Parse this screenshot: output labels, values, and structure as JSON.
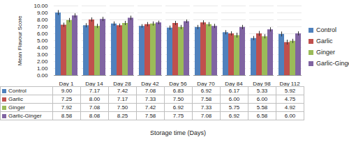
{
  "chart_data": {
    "type": "bar",
    "y_label": "Mean Flavour Score",
    "x_label": "Storage time (Days)",
    "categories": [
      "Day 1",
      "Day 14",
      "Day 28",
      "Day 42",
      "Day 56",
      "Day 70",
      "Day 84",
      "Day 98",
      "Day 112"
    ],
    "series": [
      {
        "name": "Control",
        "color": "#4f81bd",
        "values": [
          9.0,
          7.17,
          7.42,
          7.08,
          6.83,
          6.92,
          6.17,
          5.33,
          5.92
        ],
        "value_labels": [
          "9.00",
          "7.17",
          "7.42",
          "7.08",
          "6.83",
          "6.92",
          "6.17",
          "5.33",
          "5.92"
        ],
        "errors": [
          0.35,
          0.3,
          0.3,
          0.25,
          0.3,
          0.3,
          0.3,
          0.3,
          0.35
        ]
      },
      {
        "name": "Garlic",
        "color": "#c0504d",
        "values": [
          7.25,
          8.0,
          7.17,
          7.33,
          7.5,
          7.58,
          6.0,
          6.0,
          4.75
        ],
        "value_labels": [
          "7.25",
          "8.00",
          "7.17",
          "7.33",
          "7.50",
          "7.58",
          "6.00",
          "6.00",
          "4.75"
        ],
        "errors": [
          0.3,
          0.3,
          0.25,
          0.3,
          0.3,
          0.3,
          0.3,
          0.35,
          0.35
        ]
      },
      {
        "name": "Ginger",
        "color": "#9bbb59",
        "values": [
          7.92,
          7.08,
          7.5,
          7.42,
          6.92,
          7.33,
          5.75,
          5.58,
          4.92
        ],
        "value_labels": [
          "7.92",
          "7.08",
          "7.50",
          "7.42",
          "6.92",
          "7.33",
          "5.75",
          "5.58",
          "4.92"
        ],
        "errors": [
          0.3,
          0.3,
          0.3,
          0.3,
          0.3,
          0.3,
          0.35,
          0.3,
          0.3
        ]
      },
      {
        "name": "Garlic-Ginger",
        "color": "#8064a2",
        "values": [
          8.58,
          8.08,
          8.25,
          7.58,
          7.75,
          7.08,
          6.92,
          6.58,
          6.0
        ],
        "value_labels": [
          "8.58",
          "8.08",
          "8.25",
          "7.58",
          "7.75",
          "7.08",
          "6.92",
          "6.58",
          "6.00"
        ],
        "errors": [
          0.3,
          0.3,
          0.3,
          0.25,
          0.25,
          0.3,
          0.3,
          0.3,
          0.3
        ]
      }
    ],
    "ylim": [
      0,
      10
    ],
    "yticks": [
      {
        "value": 0,
        "label": "0.00"
      },
      {
        "value": 1,
        "label": "1.00"
      },
      {
        "value": 2,
        "label": "2.00"
      },
      {
        "value": 3,
        "label": "3.00"
      },
      {
        "value": 4,
        "label": "4.00"
      },
      {
        "value": 5,
        "label": "5.00"
      },
      {
        "value": 6,
        "label": "6.00"
      },
      {
        "value": 7,
        "label": "7.00"
      },
      {
        "value": 8,
        "label": "8.00"
      },
      {
        "value": 9,
        "label": "9.00"
      },
      {
        "value": 10,
        "label": "10.00"
      }
    ],
    "grid": true,
    "legend": "right"
  }
}
